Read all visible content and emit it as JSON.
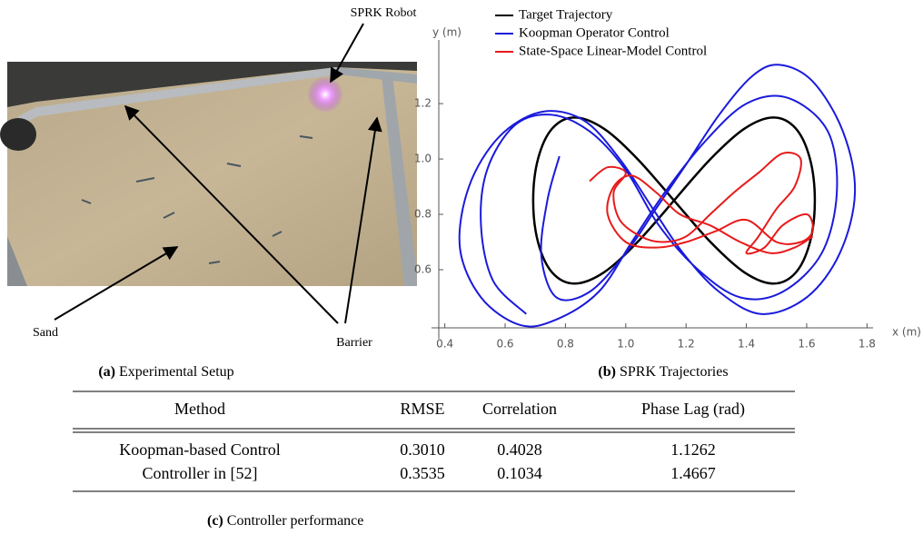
{
  "setup": {
    "caption_label": "(a)",
    "caption": "Experimental Setup",
    "annotations": [
      "SPRK Robot",
      "Sand",
      "Barrier"
    ]
  },
  "chart_data": {
    "type": "line",
    "caption_label": "(b)",
    "caption": "SPRK Trajectories",
    "x_label": "x (m)",
    "y_label": "y (m)",
    "xlim": [
      0.38,
      1.82
    ],
    "ylim": [
      0.39,
      1.43
    ],
    "xticks": [
      0.4,
      0.6,
      0.8,
      {
        "value": 1,
        "label": "1.0"
      },
      1.2,
      1.4,
      1.6,
      1.8
    ],
    "yticks": [
      0.6,
      0.8,
      {
        "value": 1,
        "label": "1.0"
      },
      1.2
    ],
    "series": [
      {
        "name": "Target Trajectory",
        "color": "#000000",
        "x": [
          1.16,
          1.281,
          1.394,
          1.49,
          1.564,
          1.611,
          1.627,
          1.611,
          1.564,
          1.49,
          1.394,
          1.281,
          1.16,
          1.039,
          0.927,
          0.83,
          0.756,
          0.709,
          0.693,
          0.709,
          0.756,
          0.83,
          0.927,
          1.039,
          1.16
        ],
        "y": [
          0.85,
          1.0,
          1.11,
          1.15,
          1.11,
          1.0,
          0.85,
          0.7,
          0.59,
          0.55,
          0.59,
          0.7,
          0.85,
          1.0,
          1.11,
          1.15,
          1.11,
          1.0,
          0.85,
          0.7,
          0.59,
          0.55,
          0.59,
          0.7,
          0.85
        ]
      },
      {
        "name": "Koopman Operator Control",
        "color": "#1a1adc",
        "x": [
          0.78,
          0.74,
          0.72,
          0.77,
          0.88,
          1.0,
          1.1,
          1.2,
          1.31,
          1.42,
          1.51,
          1.62,
          1.72,
          1.76,
          1.71,
          1.6,
          1.45,
          1.31,
          1.19,
          1.09,
          0.98,
          0.86,
          0.72,
          0.58,
          0.48,
          0.45,
          0.52,
          0.65,
          0.77,
          0.91,
          1.02,
          1.13,
          1.26,
          1.4,
          1.54,
          1.67,
          1.7,
          1.65,
          1.52,
          1.38,
          1.24,
          1.11,
          1.0,
          0.88,
          0.75,
          0.63,
          0.54,
          0.52,
          0.56,
          0.67
        ],
        "y": [
          1.01,
          0.85,
          0.65,
          0.5,
          0.52,
          0.66,
          0.82,
          0.98,
          1.16,
          1.3,
          1.34,
          1.28,
          1.1,
          0.88,
          0.66,
          0.5,
          0.44,
          0.52,
          0.66,
          0.82,
          1.0,
          1.14,
          1.17,
          1.08,
          0.9,
          0.68,
          0.5,
          0.4,
          0.42,
          0.52,
          0.7,
          0.88,
          1.06,
          1.2,
          1.22,
          1.1,
          0.88,
          0.66,
          0.52,
          0.5,
          0.6,
          0.76,
          0.96,
          1.1,
          1.16,
          1.12,
          0.96,
          0.76,
          0.56,
          0.44
        ]
      },
      {
        "name": "State-Space Linear-Model Control",
        "color": "#e81a1a",
        "x": [
          0.88,
          0.94,
          1.0,
          0.96,
          0.98,
          1.05,
          1.12,
          1.2,
          1.28,
          1.36,
          1.44,
          1.52,
          1.58,
          1.56,
          1.5,
          1.44,
          1.4,
          1.46,
          1.52,
          1.6,
          1.62,
          1.58,
          1.5,
          1.4,
          1.3,
          1.2,
          1.1,
          1.0,
          0.94,
          0.96,
          1.02,
          1.1,
          1.18,
          1.28,
          1.38,
          1.48,
          1.56,
          1.62
        ],
        "y": [
          0.92,
          0.97,
          0.95,
          0.88,
          0.78,
          0.72,
          0.7,
          0.72,
          0.8,
          0.88,
          0.95,
          1.02,
          1.0,
          0.9,
          0.82,
          0.72,
          0.66,
          0.68,
          0.76,
          0.8,
          0.74,
          0.7,
          0.7,
          0.78,
          0.74,
          0.7,
          0.68,
          0.7,
          0.8,
          0.9,
          0.94,
          0.88,
          0.8,
          0.76,
          0.7,
          0.66,
          0.68,
          0.72
        ]
      }
    ]
  },
  "table": {
    "caption_label": "(c)",
    "caption": "Controller performance",
    "header": [
      "Method",
      "RMSE",
      "Correlation",
      "Phase Lag (rad)"
    ],
    "rows": [
      [
        "Koopman-based Control",
        "0.3010",
        "0.4028",
        "1.1262"
      ],
      [
        "Controller in [52]",
        "0.3535",
        "0.1034",
        "1.4667"
      ]
    ]
  }
}
